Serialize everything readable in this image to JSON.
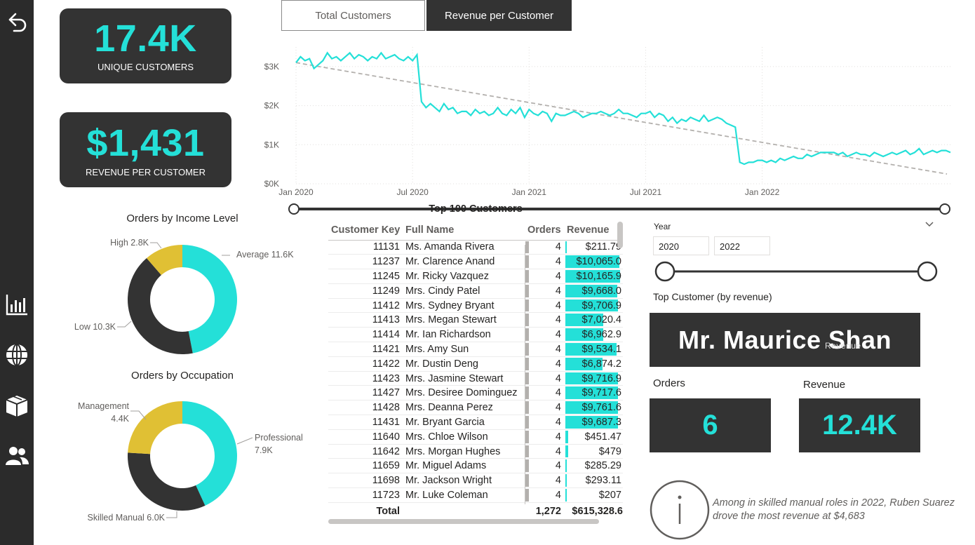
{
  "kpis": {
    "unique_customers": {
      "value": "17.4K",
      "label": "UNIQUE CUSTOMERS"
    },
    "revenue_per_customer": {
      "value": "$1,431",
      "label": "REVENUE PER CUSTOMER"
    }
  },
  "tabs": [
    {
      "label": "Total Customers",
      "active": false
    },
    {
      "label": "Revenue per Customer",
      "active": true
    }
  ],
  "sidebar": {
    "icons": [
      "back-arrow-icon",
      "bar-chart-icon",
      "globe-icon",
      "box-icon",
      "people-icon"
    ]
  },
  "colors": {
    "accent": "#24e0d8",
    "dark": "#333333",
    "gold": "#e0c034",
    "sidebar": "#2b2b2b"
  },
  "chart_data": [
    {
      "type": "line",
      "title": "",
      "xlabel": "",
      "ylabel": "",
      "x_ticks": [
        "Jan 2020",
        "Jul 2020",
        "Jan 2021",
        "Jul 2021",
        "Jan 2022"
      ],
      "y_ticks": [
        "$0K",
        "$1K",
        "$2K",
        "$3K"
      ],
      "ylim": [
        0,
        3500
      ],
      "grid": true,
      "series": [
        {
          "values": [
            3100,
            3250,
            3150,
            3200,
            2950,
            3050,
            3150,
            3350,
            3200,
            3250,
            3150,
            3250,
            3350,
            3200,
            3300,
            3250,
            3150,
            3250,
            3200,
            3350,
            3200,
            3250,
            3300,
            3200,
            3150,
            3250,
            3150,
            3300,
            2100,
            1950,
            2050,
            1950,
            1850,
            2050,
            1900,
            1950,
            1800,
            1850,
            1850,
            1750,
            1900,
            1800,
            1850,
            1750,
            1800,
            1950,
            1800,
            1750,
            1900,
            1800,
            1950,
            1700,
            1900,
            1800,
            1750,
            1850,
            1800,
            1600,
            1800,
            1750,
            1750,
            1800,
            1850,
            1800,
            1700,
            1750,
            1800,
            1800,
            1850,
            1800,
            1750,
            1800,
            1900,
            1800,
            1800,
            1750,
            1700,
            1800,
            1800,
            1850,
            1700,
            1800,
            1750,
            1600,
            1700,
            1550,
            1650,
            1600,
            1700,
            1650,
            1600,
            1750,
            1600,
            1650,
            1700,
            1650,
            1550,
            1500,
            1450,
            550,
            500,
            550,
            550,
            600,
            600,
            550,
            600,
            550,
            650,
            600,
            650,
            700,
            650,
            650,
            750,
            700,
            750,
            800,
            800,
            800,
            800,
            750,
            800,
            700,
            750,
            800,
            750,
            750,
            700,
            800,
            750,
            700,
            750,
            800,
            750,
            800,
            850,
            750,
            800,
            900,
            750,
            800,
            850,
            800,
            850,
            850,
            800
          ]
        }
      ],
      "trend": {
        "start": 3100,
        "end": 250
      }
    },
    {
      "type": "pie",
      "title": "Orders by Income Level",
      "categories": [
        "Average",
        "Low",
        "High"
      ],
      "values": [
        11.6,
        10.3,
        2.8
      ],
      "labels": [
        "Average 11.6K",
        "Low 10.3K",
        "High 2.8K"
      ],
      "colors": [
        "#24e0d8",
        "#333333",
        "#e0c034"
      ]
    },
    {
      "type": "pie",
      "title": "Orders by Occupation",
      "categories": [
        "Professional",
        "Skilled Manual",
        "Management"
      ],
      "values": [
        7.9,
        6.0,
        4.4
      ],
      "labels": [
        "Professional",
        "7.9K",
        "Skilled Manual 6.0K",
        "Management",
        "4.4K"
      ],
      "colors": [
        "#24e0d8",
        "#333333",
        "#e0c034"
      ]
    }
  ],
  "table": {
    "title": "Top 100 Customers",
    "headers": [
      "Customer Key",
      "Full Name",
      "Orders",
      "Revenue"
    ],
    "rows": [
      {
        "key": "11131",
        "name": "Ms. Amanda Rivera",
        "orders": "4",
        "revenue": "$211.79",
        "rev_num": 211.79
      },
      {
        "key": "11237",
        "name": "Mr. Clarence Anand",
        "orders": "4",
        "revenue": "$10,065.0",
        "rev_num": 10065
      },
      {
        "key": "11245",
        "name": "Mr. Ricky Vazquez",
        "orders": "4",
        "revenue": "$10,165.9",
        "rev_num": 10165.9
      },
      {
        "key": "11249",
        "name": "Mrs. Cindy Patel",
        "orders": "4",
        "revenue": "$9,668.0",
        "rev_num": 9668
      },
      {
        "key": "11412",
        "name": "Mrs. Sydney Bryant",
        "orders": "4",
        "revenue": "$9,706.9",
        "rev_num": 9706.9
      },
      {
        "key": "11413",
        "name": "Mrs. Megan Stewart",
        "orders": "4",
        "revenue": "$7,020.4",
        "rev_num": 7020.4
      },
      {
        "key": "11414",
        "name": "Mr. Ian Richardson",
        "orders": "4",
        "revenue": "$6,962.9",
        "rev_num": 6962.9
      },
      {
        "key": "11421",
        "name": "Mrs. Amy Sun",
        "orders": "4",
        "revenue": "$9,534.1",
        "rev_num": 9534.1
      },
      {
        "key": "11422",
        "name": "Mr. Dustin Deng",
        "orders": "4",
        "revenue": "$6,874.2",
        "rev_num": 6874.2
      },
      {
        "key": "11423",
        "name": "Mrs. Jasmine Stewart",
        "orders": "4",
        "revenue": "$9,716.9",
        "rev_num": 9716.9
      },
      {
        "key": "11427",
        "name": "Mrs. Desiree Dominguez",
        "orders": "4",
        "revenue": "$9,717.6",
        "rev_num": 9717.6
      },
      {
        "key": "11428",
        "name": "Mrs. Deanna Perez",
        "orders": "4",
        "revenue": "$9,761.6",
        "rev_num": 9761.6
      },
      {
        "key": "11431",
        "name": "Mr. Bryant Garcia",
        "orders": "4",
        "revenue": "$9,687.3",
        "rev_num": 9687.3
      },
      {
        "key": "11640",
        "name": "Mrs. Chloe Wilson",
        "orders": "4",
        "revenue": "$451.47",
        "rev_num": 451.47
      },
      {
        "key": "11642",
        "name": "Mrs. Morgan Hughes",
        "orders": "4",
        "revenue": "$479",
        "rev_num": 479
      },
      {
        "key": "11659",
        "name": "Mr. Miguel Adams",
        "orders": "4",
        "revenue": "$285.29",
        "rev_num": 285.29
      },
      {
        "key": "11698",
        "name": "Mr. Jackson Wright",
        "orders": "4",
        "revenue": "$293.11",
        "rev_num": 293.11
      },
      {
        "key": "11723",
        "name": "Mr. Luke Coleman",
        "orders": "4",
        "revenue": "$207",
        "rev_num": 207
      }
    ],
    "total": {
      "label": "Total",
      "orders": "1,272",
      "revenue": "$615,328.6"
    },
    "max_revenue": 10400
  },
  "year_filter": {
    "label": "Year",
    "from": "2020",
    "to": "2022"
  },
  "top_customer": {
    "label": "Top Customer (by revenue)",
    "name": "Mr. Maurice Shan",
    "overlay": "Revenue"
  },
  "orders": {
    "label": "Orders",
    "value": "6"
  },
  "revenue": {
    "label": "Revenue",
    "value": "12.4K"
  },
  "info": {
    "text": "Among in skilled manual roles in 2022, Ruben Suarez drove the most revenue at $4,683"
  }
}
